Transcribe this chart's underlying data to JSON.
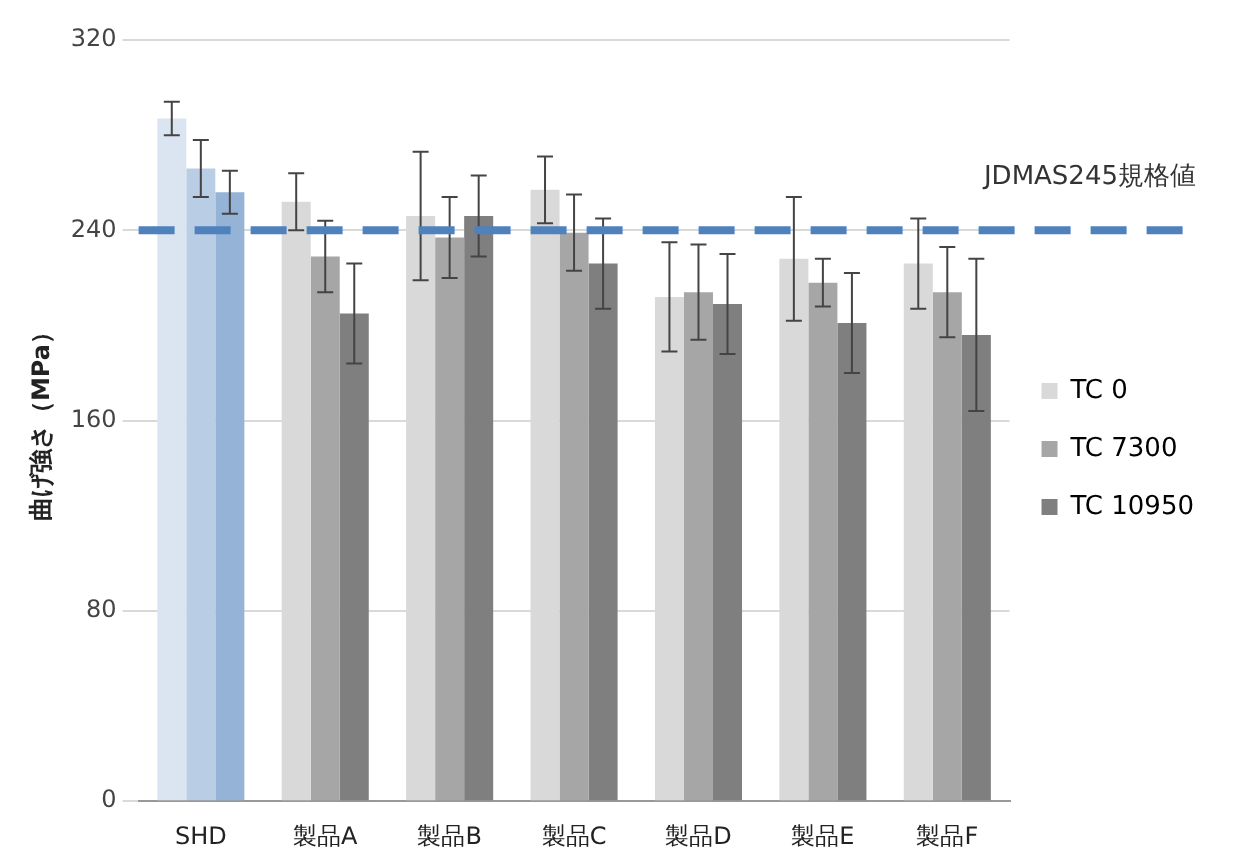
{
  "chart_data": {
    "type": "bar",
    "ylabel": "曲げ強さ（MPa）",
    "categories": [
      "SHD",
      "製品A",
      "製品B",
      "製品C",
      "製品D",
      "製品E",
      "製品F"
    ],
    "series": [
      {
        "name": "TC 0",
        "color": "#d9d9d9",
        "colors": [
          "#dbe5f1",
          "#d9d9d9",
          "#d9d9d9",
          "#d9d9d9",
          "#d9d9d9",
          "#d9d9d9",
          "#d9d9d9"
        ],
        "values": [
          287,
          252,
          246,
          257,
          212,
          228,
          226
        ],
        "errors": [
          7,
          12,
          27,
          14,
          23,
          26,
          19
        ]
      },
      {
        "name": "TC 7300",
        "color": "#a6a6a6",
        "colors": [
          "#b9cde5",
          "#a6a6a6",
          "#a6a6a6",
          "#a6a6a6",
          "#a6a6a6",
          "#a6a6a6",
          "#a6a6a6"
        ],
        "values": [
          266,
          229,
          237,
          239,
          214,
          218,
          214
        ],
        "errors": [
          12,
          15,
          17,
          16,
          20,
          10,
          19
        ]
      },
      {
        "name": "TC 10950",
        "color": "#7f7f7f",
        "colors": [
          "#95b3d7",
          "#7f7f7f",
          "#7f7f7f",
          "#7f7f7f",
          "#7f7f7f",
          "#7f7f7f",
          "#7f7f7f"
        ],
        "values": [
          256,
          205,
          246,
          226,
          209,
          201,
          196
        ],
        "errors": [
          9,
          21,
          17,
          19,
          21,
          21,
          32
        ]
      }
    ],
    "ylim": [
      0,
      320
    ],
    "yticks": [
      0,
      80,
      160,
      240,
      320
    ],
    "grid": "y",
    "legend": "right",
    "ref_lines": [
      {
        "axis": "y",
        "value": 240,
        "label": "JDMAS245規格値",
        "color": "#4f81bd",
        "line_style": "dashed"
      }
    ]
  }
}
